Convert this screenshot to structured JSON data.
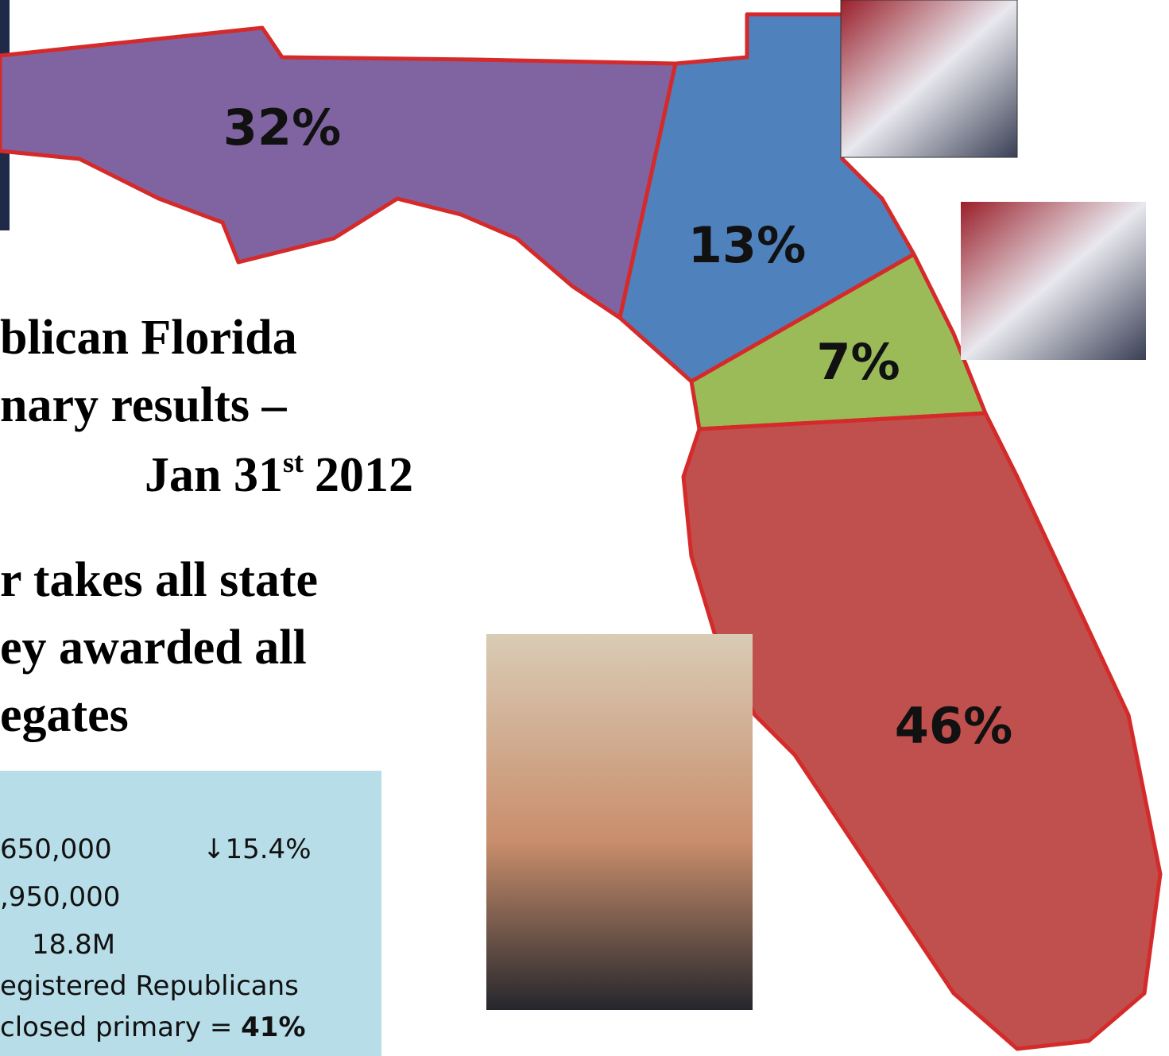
{
  "regions": [
    {
      "label": "32%"
    },
    {
      "label": "13%"
    },
    {
      "label": "7%"
    },
    {
      "label": "46%"
    }
  ],
  "heading": {
    "lines": [
      "blican Florida",
      "nary results –"
    ],
    "date_main": "Jan 31",
    "date_sup": "st",
    "date_year": "2012"
  },
  "rule": {
    "lines": [
      "r takes all state",
      "ey awarded all",
      "egates"
    ]
  },
  "stats": {
    "row1": {
      "value": "650,000",
      "change": "↓15.4%"
    },
    "row2": ",950,000",
    "row3": "18.8M",
    "row4": "egistered Republicans",
    "row5": {
      "text": "closed primary = ",
      "bold": "41%"
    }
  }
}
